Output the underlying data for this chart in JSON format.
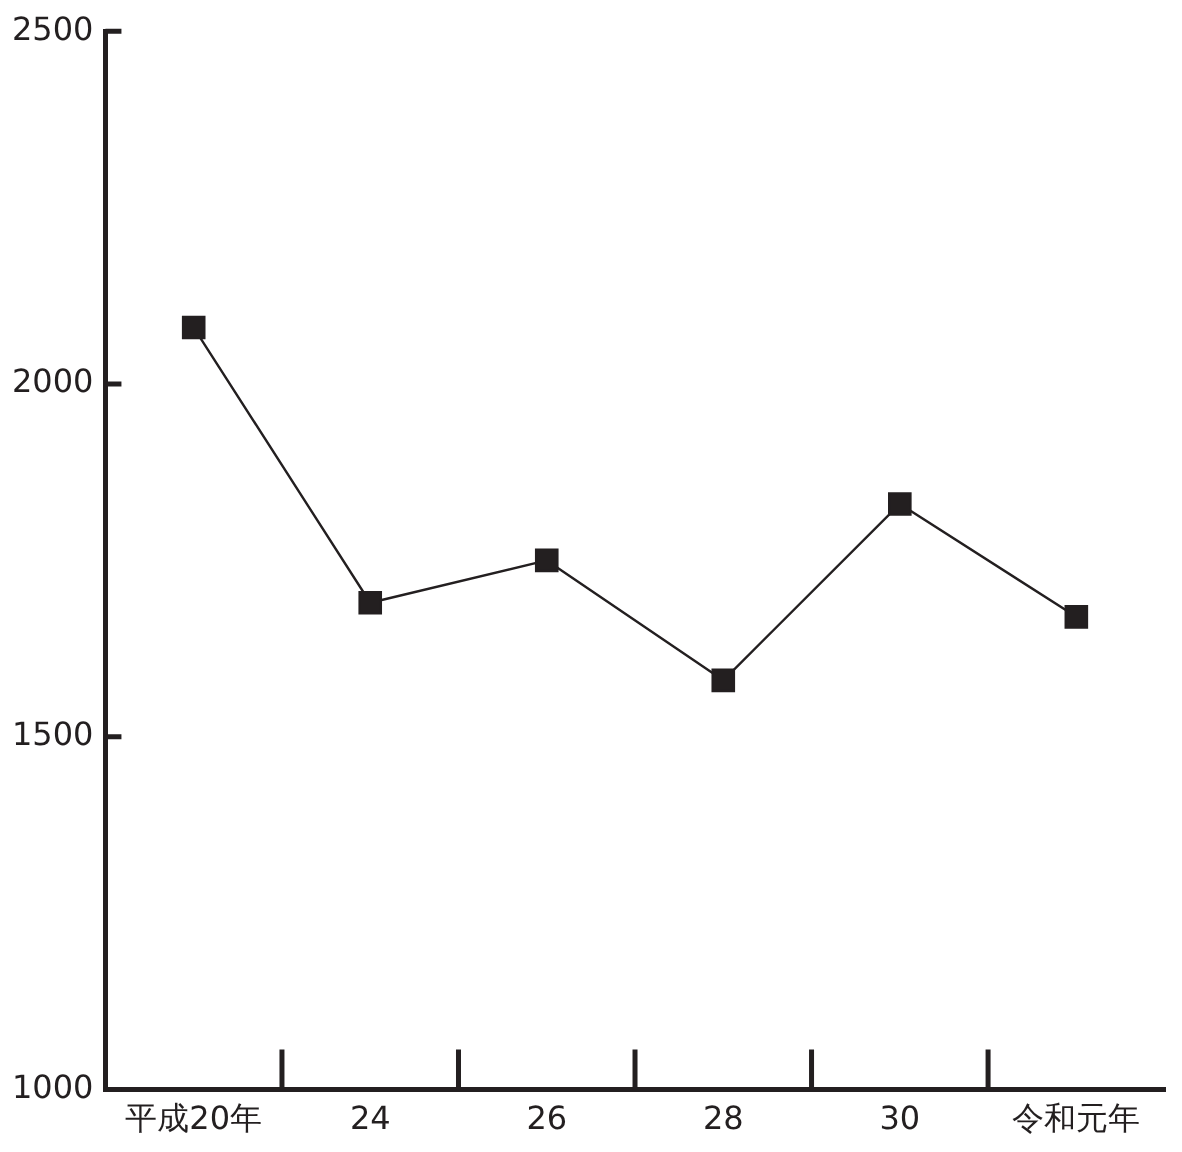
{
  "chart_data": {
    "type": "line",
    "categories": [
      "平成20年",
      "24",
      "26",
      "28",
      "30",
      "令和元年"
    ],
    "series": [
      {
        "color": "#231f20",
        "values": [
          2080,
          1690,
          1750,
          1580,
          1830,
          1670
        ]
      }
    ],
    "ylim": [
      1000,
      2500
    ],
    "yticks": [
      1000,
      1500,
      2000,
      2500
    ],
    "grid": false,
    "legend": false,
    "marker": "square",
    "line_style": "solid"
  }
}
